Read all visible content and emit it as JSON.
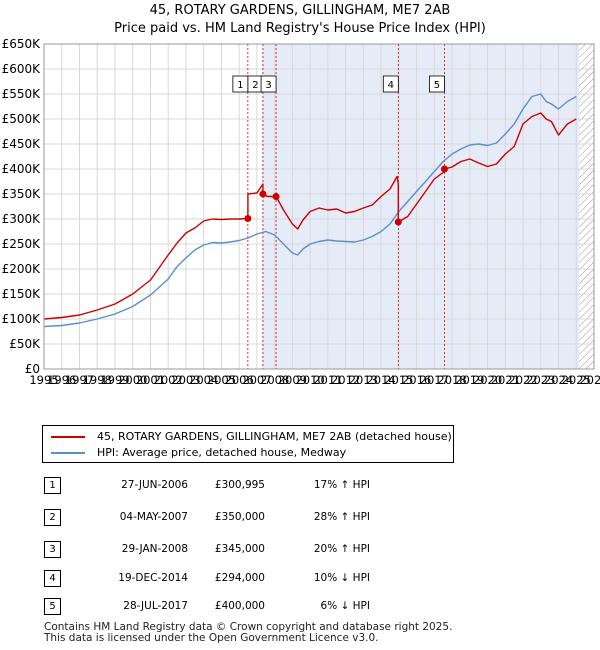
{
  "title_line1": "45, ROTARY GARDENS, GILLINGHAM, ME7 2AB",
  "title_line2": "Price paid vs. HM Land Registry's House Price Index (HPI)",
  "colors": {
    "property": "#cc0000",
    "hpi": "#5b8fcc",
    "shade": "#e6ebf8",
    "hatch": "#999999",
    "grid": "#d8d8d8",
    "marker_line": "#cc0000"
  },
  "legend": {
    "property_label": "45, ROTARY GARDENS, GILLINGHAM, ME7 2AB (detached house)",
    "hpi_label": "HPI: Average price, detached house, Medway"
  },
  "chart_data": {
    "type": "line",
    "xlim": [
      1995,
      2026
    ],
    "ylim": [
      0,
      650000
    ],
    "x_ticks": [
      1995,
      1996,
      1997,
      1998,
      1999,
      2000,
      2001,
      2002,
      2003,
      2004,
      2005,
      2006,
      2007,
      2008,
      2009,
      2010,
      2011,
      2012,
      2013,
      2014,
      2015,
      2016,
      2017,
      2018,
      2019,
      2020,
      2021,
      2022,
      2023,
      2024,
      2025,
      2026
    ],
    "y_ticks": [
      0,
      50000,
      100000,
      150000,
      200000,
      250000,
      300000,
      350000,
      400000,
      450000,
      500000,
      550000,
      600000,
      650000
    ],
    "y_tick_labels": [
      "£0",
      "£50K",
      "£100K",
      "£150K",
      "£200K",
      "£250K",
      "£300K",
      "£350K",
      "£400K",
      "£450K",
      "£500K",
      "£550K",
      "£600K",
      "£650K"
    ],
    "shaded_region": [
      2007.3,
      2025.17
    ],
    "forecast_hatch_from": 2025.17,
    "series": [
      {
        "name": "45, ROTARY GARDENS, GILLINGHAM, ME7 2AB (detached house)",
        "x": [
          1995.0,
          1996.0,
          1997.0,
          1998.0,
          1999.0,
          2000.0,
          2001.0,
          2002.0,
          2002.5,
          2003.0,
          2003.5,
          2004.0,
          2004.5,
          2005.0,
          2005.5,
          2006.0,
          2006.49,
          2006.49,
          2007.0,
          2007.34,
          2007.34,
          2007.6,
          2008.08,
          2008.08,
          2008.5,
          2009.0,
          2009.3,
          2009.6,
          2010.0,
          2010.5,
          2011.0,
          2011.5,
          2012.0,
          2012.5,
          2013.0,
          2013.5,
          2014.0,
          2014.5,
          2014.9,
          2014.97,
          2014.97,
          2015.5,
          2016.0,
          2016.5,
          2017.0,
          2017.57,
          2017.57,
          2018.0,
          2018.5,
          2019.0,
          2019.5,
          2020.0,
          2020.5,
          2021.0,
          2021.5,
          2022.0,
          2022.5,
          2023.0,
          2023.3,
          2023.6,
          2024.0,
          2024.5,
          2025.0
        ],
        "y": [
          100000,
          103000,
          108000,
          118000,
          130000,
          150000,
          178000,
          228000,
          252000,
          272000,
          282000,
          296000,
          300000,
          299000,
          300000,
          300000,
          300995,
          350000,
          352000,
          370000,
          350000,
          345000,
          345000,
          345000,
          318000,
          290000,
          280000,
          298000,
          315000,
          322000,
          318000,
          320000,
          312000,
          315000,
          322000,
          328000,
          345000,
          360000,
          385000,
          370000,
          294000,
          305000,
          330000,
          355000,
          380000,
          395000,
          400000,
          404000,
          415000,
          420000,
          412000,
          405000,
          410000,
          430000,
          445000,
          490000,
          505000,
          512000,
          500000,
          495000,
          468000,
          490000,
          500000
        ]
      },
      {
        "name": "HPI: Average price, detached house, Medway",
        "x": [
          1995.0,
          1996.0,
          1997.0,
          1998.0,
          1999.0,
          2000.0,
          2001.0,
          2002.0,
          2002.5,
          2003.0,
          2003.5,
          2004.0,
          2004.5,
          2005.0,
          2005.5,
          2006.0,
          2006.5,
          2007.0,
          2007.5,
          2008.0,
          2008.5,
          2009.0,
          2009.3,
          2009.6,
          2010.0,
          2010.5,
          2011.0,
          2011.5,
          2012.0,
          2012.5,
          2013.0,
          2013.5,
          2014.0,
          2014.5,
          2015.0,
          2015.5,
          2016.0,
          2016.5,
          2017.0,
          2017.5,
          2018.0,
          2018.5,
          2019.0,
          2019.5,
          2020.0,
          2020.5,
          2021.0,
          2021.5,
          2022.0,
          2022.5,
          2023.0,
          2023.3,
          2023.6,
          2024.0,
          2024.5,
          2025.0
        ],
        "y": [
          85000,
          87000,
          92000,
          100000,
          110000,
          125000,
          148000,
          180000,
          205000,
          222000,
          238000,
          248000,
          253000,
          252000,
          254000,
          257000,
          262000,
          270000,
          275000,
          268000,
          250000,
          232000,
          228000,
          240000,
          250000,
          255000,
          258000,
          256000,
          255000,
          254000,
          258000,
          265000,
          275000,
          290000,
          315000,
          335000,
          355000,
          375000,
          395000,
          415000,
          430000,
          440000,
          448000,
          450000,
          447000,
          452000,
          470000,
          490000,
          520000,
          545000,
          550000,
          535000,
          530000,
          520000,
          535000,
          545000
        ]
      }
    ],
    "markers": [
      {
        "label": "1",
        "x": 2006.49,
        "y": 300995
      },
      {
        "label": "2",
        "x": 2007.34,
        "y": 350000
      },
      {
        "label": "3",
        "x": 2008.08,
        "y": 345000
      },
      {
        "label": "4",
        "x": 2014.97,
        "y": 294000
      },
      {
        "label": "5",
        "x": 2017.57,
        "y": 400000
      }
    ]
  },
  "sales": [
    {
      "num": "1",
      "date": "27-JUN-2006",
      "price": "£300,995",
      "hpi": "17% ↑ HPI"
    },
    {
      "num": "2",
      "date": "04-MAY-2007",
      "price": "£350,000",
      "hpi": "28% ↑ HPI"
    },
    {
      "num": "3",
      "date": "29-JAN-2008",
      "price": "£345,000",
      "hpi": "20% ↑ HPI"
    },
    {
      "num": "4",
      "date": "19-DEC-2014",
      "price": "£294,000",
      "hpi": "10% ↓ HPI"
    },
    {
      "num": "5",
      "date": "28-JUL-2017",
      "price": "£400,000",
      "hpi": "6% ↓ HPI"
    }
  ],
  "footer_line1": "Contains HM Land Registry data © Crown copyright and database right 2025.",
  "footer_line2": "This data is licensed under the Open Government Licence v3.0."
}
